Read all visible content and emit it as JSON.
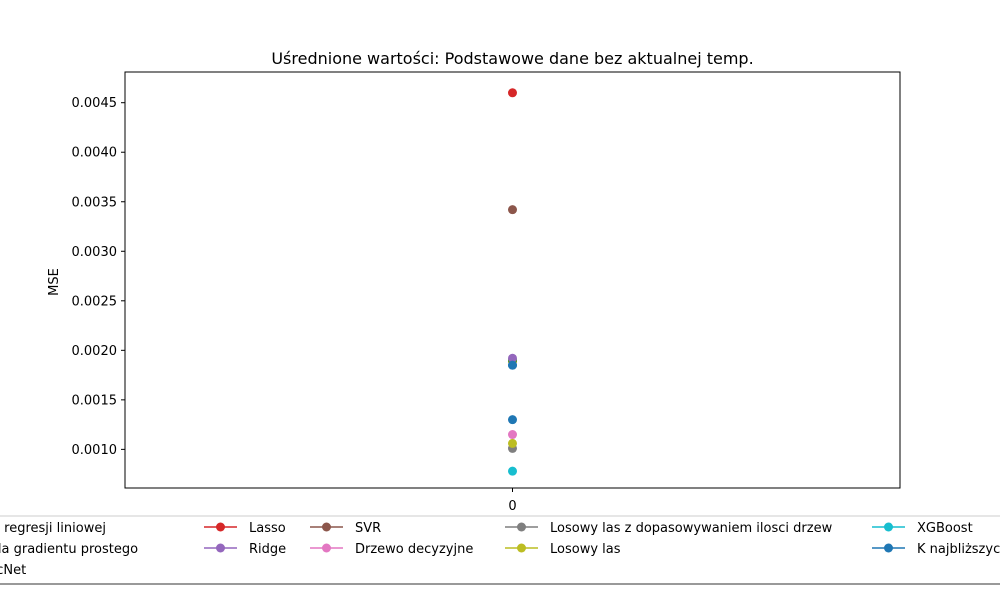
{
  "chart_data": {
    "type": "scatter",
    "title": "Uśrednione wartości: Podstawowe dane bez aktualnej temp.",
    "xlabel": "",
    "ylabel": "MSE",
    "x_ticks": [
      "0"
    ],
    "y_ticks": [
      0.001,
      0.0015,
      0.002,
      0.0025,
      0.003,
      0.0035,
      0.004,
      0.0045
    ],
    "y_tick_labels": [
      "0.0010",
      "0.0015",
      "0.0020",
      "0.0025",
      "0.0030",
      "0.0035",
      "0.0040",
      "0.0045"
    ],
    "xlim": [
      -1,
      1
    ],
    "ylim": [
      0.00061,
      0.00481
    ],
    "grid": false,
    "legend_position": "bottom",
    "series": [
      {
        "name": "Model regresji liniowej",
        "x": [
          0
        ],
        "values": [
          0.00185
        ],
        "color": "#1f77b4"
      },
      {
        "name": "Metoda gradientu prostego",
        "x": [
          0
        ],
        "values": [
          0.00189
        ],
        "color": "#ff7f0e"
      },
      {
        "name": "ElasticNet",
        "x": [
          0
        ],
        "values": [
          0.0019
        ],
        "color": "#2ca02c"
      },
      {
        "name": "Lasso",
        "x": [
          0
        ],
        "values": [
          0.0046
        ],
        "color": "#d62728"
      },
      {
        "name": "Ridge",
        "x": [
          0
        ],
        "values": [
          0.00192
        ],
        "color": "#9467bd"
      },
      {
        "name": "SVR",
        "x": [
          0
        ],
        "values": [
          0.00342
        ],
        "color": "#8c564b"
      },
      {
        "name": "Drzewo decyzyjne",
        "x": [
          0
        ],
        "values": [
          0.00115
        ],
        "color": "#e377c2"
      },
      {
        "name": "Losowy las z dopasowywaniem ilosci drzew",
        "x": [
          0
        ],
        "values": [
          0.00101
        ],
        "color": "#7f7f7f"
      },
      {
        "name": "Losowy las",
        "x": [
          0
        ],
        "values": [
          0.00106
        ],
        "color": "#bcbd22"
      },
      {
        "name": "XGBoost",
        "x": [
          0
        ],
        "values": [
          0.00078
        ],
        "color": "#17becf"
      },
      {
        "name": "K najbliższych sąsiadów",
        "x": [
          0
        ],
        "values": [
          0.00185
        ],
        "color": "#1f77b4"
      },
      {
        "name": "",
        "x": [
          0
        ],
        "values": [
          0.0013
        ],
        "color": "#1f77b4"
      }
    ]
  }
}
